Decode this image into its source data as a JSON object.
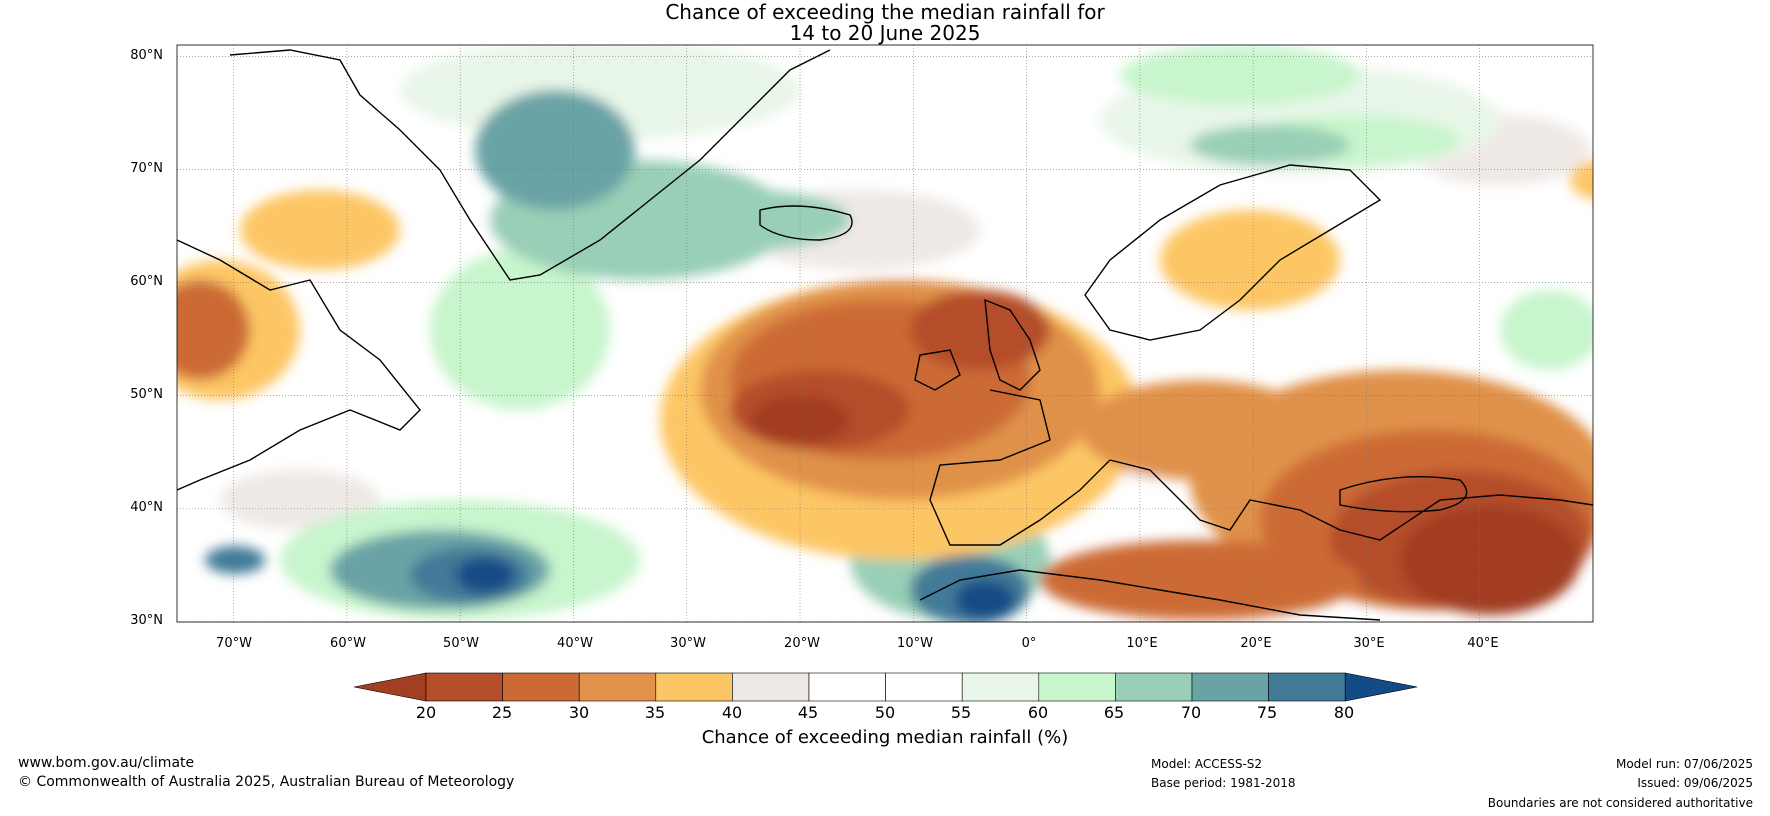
{
  "title": {
    "line1": "Chance of exceeding the median rainfall for",
    "line2": "14 to 20 June 2025"
  },
  "map": {
    "lat_labels": [
      "80°N",
      "70°N",
      "60°N",
      "50°N",
      "40°N",
      "30°N"
    ],
    "lon_labels": [
      "70°W",
      "60°W",
      "50°W",
      "40°W",
      "30°W",
      "20°W",
      "10°W",
      "0°",
      "10°E",
      "20°E",
      "30°E",
      "40°E"
    ],
    "grid": true,
    "lat_range": [
      30,
      81
    ],
    "lon_range": [
      -75,
      50
    ]
  },
  "colorbar": {
    "ticks": [
      "20",
      "25",
      "30",
      "35",
      "40",
      "45",
      "50",
      "55",
      "60",
      "65",
      "70",
      "75",
      "80"
    ],
    "colors": [
      "#a23e22",
      "#b54e2a",
      "#cc6a36",
      "#e0914a",
      "#fdc665",
      "#efe9e5",
      "#ffffff",
      "#ffffff",
      "#e8f6e8",
      "#c7f5cc",
      "#99cfb6",
      "#6aa3a6",
      "#427a98",
      "#124b86"
    ],
    "label": "Chance of exceeding median rainfall (%)"
  },
  "footer": {
    "website": "www.bom.gov.au/climate",
    "copyright": "© Commonwealth of Australia 2025, Australian Bureau of Meteorology",
    "model": "Model: ACCESS-S2",
    "base_period": "Base period: 1981-2018",
    "model_run": "Model run: 07/06/2025",
    "issued": "Issued: 09/06/2025",
    "disclaimer": "Boundaries are not considered authoritative"
  }
}
